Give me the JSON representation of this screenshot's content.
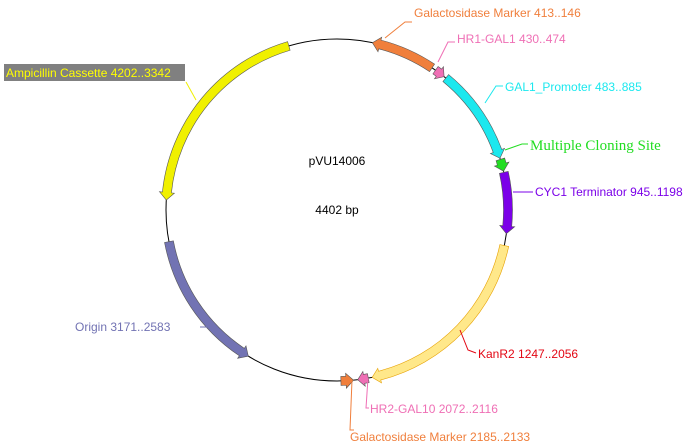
{
  "plasmid": {
    "name": "pVU14006",
    "length_label": "4402 bp",
    "length": 4402,
    "backbone_color": "#000000"
  },
  "features": [
    {
      "label": "Galactosidase Marker 413..146",
      "color": "#f07f3c",
      "text_color": "#f07f3c",
      "start": 146,
      "end": 413,
      "arrow": "ccw"
    },
    {
      "label": "HR1-GAL1 430..474",
      "color": "#ef6fb5",
      "text_color": "#ef6fb5",
      "start": 430,
      "end": 474,
      "arrow": "cw"
    },
    {
      "label": "GAL1_Promoter 483..885",
      "color": "#1ce8ee",
      "text_color": "#1ce8ee",
      "start": 483,
      "end": 885,
      "arrow": "cw"
    },
    {
      "label": "Multiple Cloning Site",
      "color": "#22dd22",
      "text_color": "#22dd22",
      "start": 890,
      "end": 940,
      "arrow": "cw"
    },
    {
      "label": "CYC1 Terminator 945..1198",
      "color": "#7b00e8",
      "text_color": "#7b00e8",
      "start": 945,
      "end": 1198,
      "arrow": "cw"
    },
    {
      "label": "KanR2 1247..2056",
      "color": "#ffe88a",
      "text_color": "#e30613",
      "start": 1247,
      "end": 2056,
      "arrow": "cw"
    },
    {
      "label": "HR2-GAL10 2072..2116",
      "color": "#ef6fb5",
      "text_color": "#ef6fb5",
      "start": 2072,
      "end": 2116,
      "arrow": "cw"
    },
    {
      "label": "Galactosidase Marker 2185..2133",
      "color": "#f07f3c",
      "text_color": "#f07f3c",
      "start": 2133,
      "end": 2185,
      "arrow": "ccw"
    },
    {
      "label": "Origin 3171..2583",
      "color": "#7273b3",
      "text_color": "#7273b3",
      "start": 2583,
      "end": 3171,
      "arrow": "ccw"
    },
    {
      "label": "Ampicillin Cassette 4202..3342",
      "color": "#f0f000",
      "text_color": "#ffff00",
      "label_bg": "#808080",
      "start": 3342,
      "end": 4202,
      "arrow": "ccw"
    }
  ]
}
